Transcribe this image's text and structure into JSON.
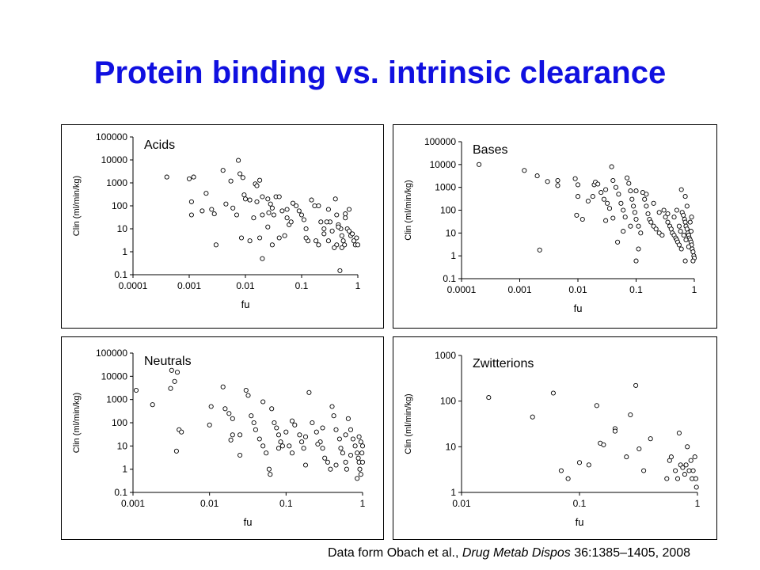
{
  "slide": {
    "title": "Protein binding vs. intrinsic clearance",
    "citation_prefix": "Data form Obach et al., ",
    "citation_journal": "Drug Metab Dispos",
    "citation_suffix": " 36:1385–1405, 2008"
  },
  "chart_data": [
    {
      "type": "scatter",
      "title": "Acids",
      "xlabel": "fu",
      "ylabel": "Clin (ml/min/kg)",
      "x_scale": "log",
      "y_scale": "log",
      "xlim": [
        0.0001,
        1
      ],
      "ylim": [
        0.1,
        100000
      ],
      "xticks": [
        "0.0001",
        "0.001",
        "0.01",
        "0.1",
        "1"
      ],
      "yticks": [
        "0.1",
        "1",
        "10",
        "100",
        "1000",
        "10000",
        "100000"
      ],
      "points": [
        [
          0.0004,
          1800
        ],
        [
          0.001,
          1500
        ],
        [
          0.0012,
          1800
        ],
        [
          0.0011,
          150
        ],
        [
          0.0011,
          40
        ],
        [
          0.002,
          350
        ],
        [
          0.0017,
          60
        ],
        [
          0.0025,
          70
        ],
        [
          0.0028,
          45
        ],
        [
          0.004,
          3500
        ],
        [
          0.0045,
          120
        ],
        [
          0.0055,
          1200
        ],
        [
          0.006,
          80
        ],
        [
          0.007,
          40
        ],
        [
          0.0075,
          9500
        ],
        [
          0.008,
          2500
        ],
        [
          0.009,
          1700
        ],
        [
          0.0095,
          300
        ],
        [
          0.01,
          200
        ],
        [
          0.012,
          180
        ],
        [
          0.015,
          900
        ],
        [
          0.016,
          750
        ],
        [
          0.018,
          1300
        ],
        [
          0.02,
          250
        ],
        [
          0.02,
          40
        ],
        [
          0.025,
          200
        ],
        [
          0.028,
          120
        ],
        [
          0.03,
          80
        ],
        [
          0.032,
          40
        ],
        [
          0.035,
          250
        ],
        [
          0.04,
          250
        ],
        [
          0.045,
          60
        ],
        [
          0.05,
          5
        ],
        [
          0.055,
          30
        ],
        [
          0.06,
          15
        ],
        [
          0.07,
          130
        ],
        [
          0.08,
          100
        ],
        [
          0.09,
          60
        ],
        [
          0.1,
          40
        ],
        [
          0.11,
          25
        ],
        [
          0.12,
          10
        ],
        [
          0.13,
          3
        ],
        [
          0.15,
          180
        ],
        [
          0.17,
          100
        ],
        [
          0.2,
          100
        ],
        [
          0.22,
          20
        ],
        [
          0.25,
          10
        ],
        [
          0.25,
          6
        ],
        [
          0.3,
          70
        ],
        [
          0.32,
          20
        ],
        [
          0.35,
          8
        ],
        [
          0.4,
          200
        ],
        [
          0.42,
          40
        ],
        [
          0.45,
          15
        ],
        [
          0.5,
          10
        ],
        [
          0.52,
          5
        ],
        [
          0.55,
          3
        ],
        [
          0.6,
          30
        ],
        [
          0.65,
          10
        ],
        [
          0.7,
          8
        ],
        [
          0.75,
          5
        ],
        [
          0.8,
          6
        ],
        [
          0.85,
          3
        ],
        [
          0.9,
          2
        ],
        [
          0.95,
          4
        ],
        [
          1,
          2
        ],
        [
          0.6,
          45
        ],
        [
          0.7,
          70
        ],
        [
          0.012,
          3
        ],
        [
          0.0085,
          4
        ],
        [
          0.003,
          2
        ],
        [
          0.02,
          0.5
        ],
        [
          0.03,
          2
        ],
        [
          0.018,
          4
        ],
        [
          0.025,
          12
        ],
        [
          0.04,
          4
        ],
        [
          0.055,
          70
        ],
        [
          0.12,
          4
        ],
        [
          0.18,
          3
        ],
        [
          0.2,
          2
        ],
        [
          0.3,
          3
        ],
        [
          0.48,
          0.15
        ],
        [
          0.42,
          2
        ],
        [
          0.38,
          1.5
        ],
        [
          0.45,
          12
        ],
        [
          0.28,
          20
        ],
        [
          0.016,
          150
        ],
        [
          0.014,
          30
        ],
        [
          0.026,
          50
        ],
        [
          0.065,
          20
        ],
        [
          0.58,
          2
        ],
        [
          0.52,
          1.5
        ]
      ]
    },
    {
      "type": "scatter",
      "title": "Bases",
      "xlabel": "fu",
      "ylabel": "Clin (ml/min/kg)",
      "x_scale": "log",
      "y_scale": "log",
      "xlim": [
        0.0001,
        1
      ],
      "ylim": [
        0.1,
        100000
      ],
      "xticks": [
        "0.0001",
        "0.001",
        "0.01",
        "0.1",
        "1"
      ],
      "yticks": [
        "0.1",
        "1",
        "10",
        "100",
        "1000",
        "10000",
        "100000"
      ],
      "points": [
        [
          0.0002,
          10000
        ],
        [
          0.0012,
          5500
        ],
        [
          0.002,
          3200
        ],
        [
          0.0022,
          1.8
        ],
        [
          0.003,
          1800
        ],
        [
          0.0045,
          2000
        ],
        [
          0.0045,
          1200
        ],
        [
          0.009,
          2400
        ],
        [
          0.01,
          1300
        ],
        [
          0.01,
          400
        ],
        [
          0.0095,
          60
        ],
        [
          0.012,
          40
        ],
        [
          0.015,
          250
        ],
        [
          0.018,
          400
        ],
        [
          0.019,
          1300
        ],
        [
          0.02,
          1700
        ],
        [
          0.022,
          1400
        ],
        [
          0.025,
          600
        ],
        [
          0.028,
          300
        ],
        [
          0.03,
          800
        ],
        [
          0.032,
          200
        ],
        [
          0.035,
          120
        ],
        [
          0.038,
          8000
        ],
        [
          0.04,
          2000
        ],
        [
          0.045,
          1000
        ],
        [
          0.05,
          500
        ],
        [
          0.055,
          200
        ],
        [
          0.06,
          100
        ],
        [
          0.065,
          50
        ],
        [
          0.07,
          2600
        ],
        [
          0.075,
          1500
        ],
        [
          0.08,
          700
        ],
        [
          0.085,
          300
        ],
        [
          0.09,
          150
        ],
        [
          0.095,
          80
        ],
        [
          0.1,
          40
        ],
        [
          0.11,
          20
        ],
        [
          0.12,
          10
        ],
        [
          0.13,
          600
        ],
        [
          0.14,
          300
        ],
        [
          0.15,
          150
        ],
        [
          0.16,
          70
        ],
        [
          0.17,
          40
        ],
        [
          0.18,
          30
        ],
        [
          0.2,
          20
        ],
        [
          0.22,
          15
        ],
        [
          0.25,
          10
        ],
        [
          0.28,
          8
        ],
        [
          0.3,
          100
        ],
        [
          0.32,
          50
        ],
        [
          0.35,
          30
        ],
        [
          0.38,
          20
        ],
        [
          0.4,
          15
        ],
        [
          0.42,
          10
        ],
        [
          0.45,
          8
        ],
        [
          0.48,
          6
        ],
        [
          0.5,
          5
        ],
        [
          0.52,
          4
        ],
        [
          0.55,
          3
        ],
        [
          0.6,
          2
        ],
        [
          0.62,
          80
        ],
        [
          0.65,
          60
        ],
        [
          0.68,
          40
        ],
        [
          0.7,
          30
        ],
        [
          0.72,
          20
        ],
        [
          0.75,
          15
        ],
        [
          0.78,
          10
        ],
        [
          0.8,
          8
        ],
        [
          0.82,
          6
        ],
        [
          0.85,
          5
        ],
        [
          0.88,
          4
        ],
        [
          0.9,
          3
        ],
        [
          0.92,
          2
        ],
        [
          0.95,
          1.5
        ],
        [
          0.98,
          1
        ],
        [
          1,
          0.8
        ],
        [
          0.7,
          0.6
        ],
        [
          0.95,
          0.6
        ],
        [
          0.7,
          400
        ],
        [
          0.75,
          150
        ],
        [
          0.6,
          800
        ],
        [
          0.5,
          100
        ],
        [
          0.45,
          50
        ],
        [
          0.35,
          70
        ],
        [
          0.25,
          80
        ],
        [
          0.2,
          200
        ],
        [
          0.15,
          500
        ],
        [
          0.1,
          700
        ],
        [
          0.1,
          0.6
        ],
        [
          0.11,
          2
        ],
        [
          0.048,
          4
        ],
        [
          0.06,
          12
        ],
        [
          0.08,
          20
        ],
        [
          0.03,
          35
        ],
        [
          0.04,
          45
        ],
        [
          0.55,
          20
        ],
        [
          0.58,
          12
        ],
        [
          0.66,
          8
        ],
        [
          0.72,
          5
        ],
        [
          0.8,
          2.5
        ],
        [
          0.88,
          12
        ],
        [
          0.85,
          30
        ],
        [
          0.9,
          50
        ]
      ]
    },
    {
      "type": "scatter",
      "title": "Neutrals",
      "xlabel": "fu",
      "ylabel": "Clin (ml/min/kg)",
      "x_scale": "log",
      "y_scale": "log",
      "xlim": [
        0.001,
        1
      ],
      "ylim": [
        0.1,
        100000
      ],
      "xticks": [
        "0.001",
        "0.01",
        "0.1",
        "1"
      ],
      "yticks": [
        "0.1",
        "1",
        "10",
        "100",
        "1000",
        "10000",
        "100000"
      ],
      "points": [
        [
          0.0011,
          2500
        ],
        [
          0.0018,
          600
        ],
        [
          0.0032,
          18000
        ],
        [
          0.0038,
          15000
        ],
        [
          0.0035,
          6000
        ],
        [
          0.0031,
          3000
        ],
        [
          0.004,
          50
        ],
        [
          0.0043,
          40
        ],
        [
          0.0037,
          6
        ],
        [
          0.01,
          80
        ],
        [
          0.0105,
          500
        ],
        [
          0.015,
          3500
        ],
        [
          0.016,
          400
        ],
        [
          0.018,
          250
        ],
        [
          0.02,
          150
        ],
        [
          0.02,
          30
        ],
        [
          0.019,
          18
        ],
        [
          0.025,
          4
        ],
        [
          0.03,
          2500
        ],
        [
          0.032,
          1500
        ],
        [
          0.035,
          200
        ],
        [
          0.038,
          100
        ],
        [
          0.04,
          50
        ],
        [
          0.045,
          20
        ],
        [
          0.05,
          10
        ],
        [
          0.055,
          5
        ],
        [
          0.06,
          1
        ],
        [
          0.062,
          0.6
        ],
        [
          0.065,
          400
        ],
        [
          0.07,
          100
        ],
        [
          0.075,
          60
        ],
        [
          0.08,
          30
        ],
        [
          0.085,
          15
        ],
        [
          0.09,
          10
        ],
        [
          0.1,
          40
        ],
        [
          0.11,
          10
        ],
        [
          0.12,
          5
        ],
        [
          0.13,
          80
        ],
        [
          0.15,
          30
        ],
        [
          0.16,
          15
        ],
        [
          0.17,
          8
        ],
        [
          0.18,
          1.5
        ],
        [
          0.2,
          2000
        ],
        [
          0.22,
          100
        ],
        [
          0.25,
          40
        ],
        [
          0.28,
          15
        ],
        [
          0.3,
          8
        ],
        [
          0.32,
          3
        ],
        [
          0.35,
          2
        ],
        [
          0.38,
          1
        ],
        [
          0.4,
          500
        ],
        [
          0.42,
          200
        ],
        [
          0.45,
          50
        ],
        [
          0.5,
          20
        ],
        [
          0.52,
          8
        ],
        [
          0.55,
          5
        ],
        [
          0.6,
          2
        ],
        [
          0.62,
          1
        ],
        [
          0.65,
          150
        ],
        [
          0.7,
          50
        ],
        [
          0.75,
          20
        ],
        [
          0.8,
          10
        ],
        [
          0.85,
          5
        ],
        [
          0.88,
          3
        ],
        [
          0.9,
          2
        ],
        [
          0.92,
          1
        ],
        [
          0.95,
          0.6
        ],
        [
          0.98,
          5
        ],
        [
          1,
          10
        ],
        [
          0.95,
          15
        ],
        [
          0.9,
          25
        ],
        [
          0.85,
          0.4
        ],
        [
          1,
          2
        ],
        [
          0.05,
          800
        ],
        [
          0.12,
          120
        ],
        [
          0.18,
          25
        ],
        [
          0.26,
          12
        ],
        [
          0.45,
          1.5
        ],
        [
          0.7,
          4
        ],
        [
          0.6,
          30
        ],
        [
          0.3,
          60
        ],
        [
          0.08,
          8
        ],
        [
          0.025,
          30
        ]
      ]
    },
    {
      "type": "scatter",
      "title": "Zwitterions",
      "xlabel": "fu",
      "ylabel": "Clin (ml/min/kg)",
      "x_scale": "log",
      "y_scale": "log",
      "xlim": [
        0.01,
        1
      ],
      "ylim": [
        1,
        1000
      ],
      "xticks": [
        "0.01",
        "0.1",
        "1"
      ],
      "yticks": [
        "1",
        "10",
        "100",
        "1000"
      ],
      "points": [
        [
          0.017,
          120
        ],
        [
          0.04,
          45
        ],
        [
          0.06,
          150
        ],
        [
          0.07,
          3
        ],
        [
          0.08,
          2
        ],
        [
          0.1,
          4.5
        ],
        [
          0.12,
          4
        ],
        [
          0.14,
          80
        ],
        [
          0.15,
          12
        ],
        [
          0.16,
          11
        ],
        [
          0.2,
          25
        ],
        [
          0.2,
          22
        ],
        [
          0.25,
          6
        ],
        [
          0.27,
          50
        ],
        [
          0.3,
          220
        ],
        [
          0.32,
          9
        ],
        [
          0.35,
          3
        ],
        [
          0.4,
          15
        ],
        [
          0.55,
          2
        ],
        [
          0.58,
          5
        ],
        [
          0.6,
          6
        ],
        [
          0.65,
          3
        ],
        [
          0.7,
          20
        ],
        [
          0.72,
          4
        ],
        [
          0.75,
          3.5
        ],
        [
          0.78,
          2.5
        ],
        [
          0.8,
          4
        ],
        [
          0.82,
          10
        ],
        [
          0.85,
          3
        ],
        [
          0.88,
          5
        ],
        [
          0.9,
          2
        ],
        [
          0.92,
          3
        ],
        [
          0.95,
          6
        ],
        [
          0.97,
          2
        ],
        [
          0.98,
          1.3
        ],
        [
          0.68,
          2
        ]
      ]
    }
  ]
}
